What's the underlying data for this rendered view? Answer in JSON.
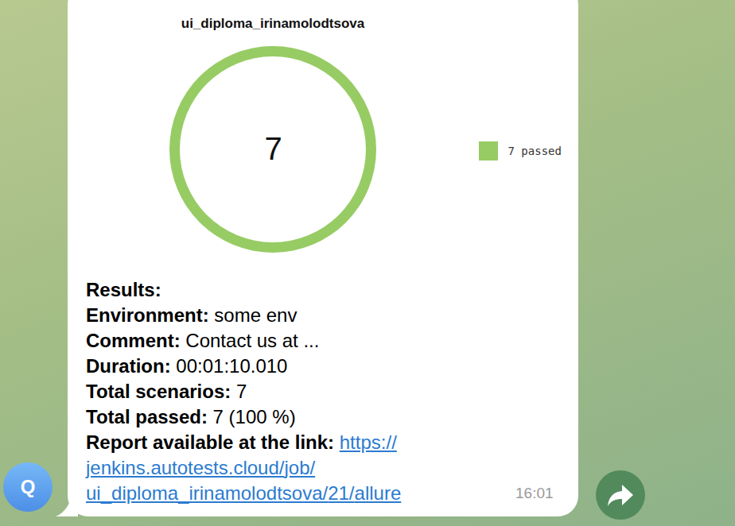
{
  "chart_data": {
    "type": "donut",
    "title": "ui_diploma_irinamolodtsova",
    "categories": [
      "7 passed"
    ],
    "values": [
      7
    ],
    "colors": [
      "#97cc64"
    ],
    "total": 7,
    "legend": "right"
  },
  "message": {
    "heading": "Results:",
    "fields": [
      {
        "label": "Environment:",
        "value": "some env"
      },
      {
        "label": "Comment:",
        "value": "Contact us at ..."
      },
      {
        "label": "Duration:",
        "value": "00:01:10.010"
      },
      {
        "label": "Total scenarios:",
        "value": "7"
      },
      {
        "label": "Total passed:",
        "value": "7 (100 %)"
      },
      {
        "label": "Report available at the link:",
        "link": "https://jenkins.autotests.cloud/job/ui_diploma_irinamolodtsova/21/allure"
      }
    ],
    "time": "16:01",
    "avatar": "Q"
  }
}
